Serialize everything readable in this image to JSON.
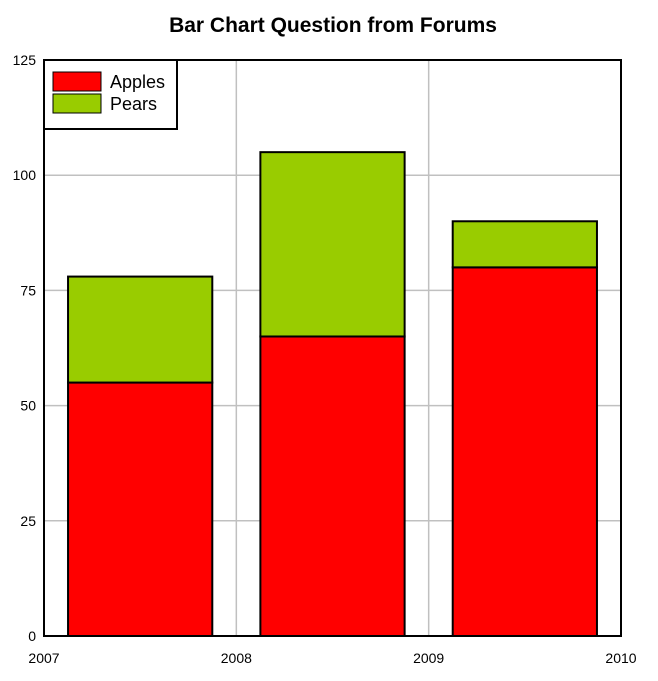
{
  "chart_data": {
    "type": "bar",
    "stacked": true,
    "title": "Bar Chart Question from Forums",
    "xlabel": "",
    "ylabel": "",
    "x_ticks": [
      "2007",
      "2008",
      "2009",
      "2010"
    ],
    "y_ticks": [
      "0",
      "25",
      "50",
      "75",
      "100",
      "125"
    ],
    "ylim": [
      0,
      125
    ],
    "categories": [
      "2007",
      "2008",
      "2009"
    ],
    "series": [
      {
        "name": "Apples",
        "values": [
          55,
          65,
          80
        ],
        "color": "#ff0000"
      },
      {
        "name": "Pears",
        "values": [
          23,
          40,
          10
        ],
        "color": "#99cc00"
      }
    ],
    "grid": true,
    "legend_position": "top-left"
  }
}
